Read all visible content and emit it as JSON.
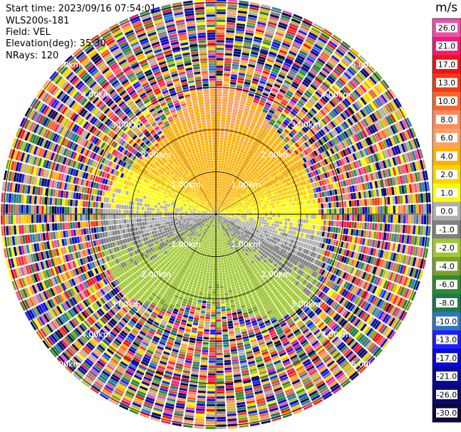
{
  "header": {
    "start_time": "Start time: 2023/09/16 07:54:01",
    "instrument": "WLS200s-181",
    "field": "Field: VEL",
    "elevation": "Elevation(deg): 35.30",
    "nrays": "NRays: 120"
  },
  "colorbar": {
    "unit": "m/s",
    "ticks": [
      "26.0",
      "21.0",
      "17.0",
      "13.0",
      "10.0",
      "8.0",
      "6.0",
      "4.0",
      "2.0",
      "1.0",
      "0.0",
      "-1.0",
      "-2.0",
      "-4.0",
      "-6.0",
      "-8.0",
      "-10.0",
      "-13.0",
      "-17.0",
      "-21.0",
      "-26.0",
      "-30.0"
    ],
    "colors": [
      "#ee4fa8",
      "#f01c78",
      "#ee1414",
      "#f03c14",
      "#f86428",
      "#fc8a5a",
      "#fca068",
      "#fcb000",
      "#fcd200",
      "#fcfc00",
      "#b0b0b0",
      "#808080",
      "#a0c832",
      "#7ca028",
      "#2e8c2e",
      "#1e7a50",
      "#2e78c0",
      "#1e1eff",
      "#0a0ad2",
      "#0808a0",
      "#0a0a6e",
      "#0a0a3c"
    ]
  },
  "chart_data": {
    "type": "ppi",
    "title": "",
    "field": "VEL",
    "units": "m/s",
    "elevation_deg": 35.3,
    "n_rays": 120,
    "range_ring_labels": [
      "1.00km",
      "2.00km",
      "3.00km",
      "4.00km",
      "5.00km"
    ],
    "scale_range": [
      -30.0,
      26.0
    ],
    "color_bins": [
      {
        "label": "26.0",
        "color": "#ee4fa8"
      },
      {
        "label": "21.0",
        "color": "#f01c78"
      },
      {
        "label": "17.0",
        "color": "#ee1414"
      },
      {
        "label": "13.0",
        "color": "#f03c14"
      },
      {
        "label": "10.0",
        "color": "#f86428"
      },
      {
        "label": "8.0",
        "color": "#fc8a5a"
      },
      {
        "label": "6.0",
        "color": "#fca068"
      },
      {
        "label": "4.0",
        "color": "#fcb000"
      },
      {
        "label": "2.0",
        "color": "#fcd200"
      },
      {
        "label": "1.0",
        "color": "#fcfc00"
      },
      {
        "label": "0.0",
        "color": "#b0b0b0"
      },
      {
        "label": "-1.0",
        "color": "#808080"
      },
      {
        "label": "-2.0",
        "color": "#a0c832"
      },
      {
        "label": "-4.0",
        "color": "#7ca028"
      },
      {
        "label": "-6.0",
        "color": "#2e8c2e"
      },
      {
        "label": "-8.0",
        "color": "#1e7a50"
      },
      {
        "label": "-10.0",
        "color": "#2e78c0"
      },
      {
        "label": "-13.0",
        "color": "#1e1eff"
      },
      {
        "label": "-17.0",
        "color": "#0a0ad2"
      },
      {
        "label": "-21.0",
        "color": "#0808a0"
      },
      {
        "label": "-26.0",
        "color": "#0a0a6e"
      },
      {
        "label": "-30.0",
        "color": "#0a0a3c"
      }
    ],
    "pattern": {
      "north_sector": "positive (yellow/orange, ~1-6 m/s)",
      "south_sector": "negative (green, ~-2 to -8 m/s)",
      "east_west": "near zero (gray)",
      "beyond_3km": "noise (random colors)"
    },
    "grid": true,
    "legend": "right"
  }
}
